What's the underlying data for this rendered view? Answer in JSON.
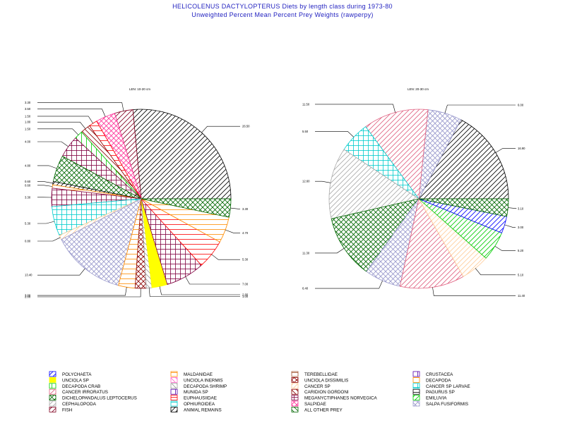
{
  "title": "HELICOLENUS DACTYLOPTERUS Diets by length class during 1973-80",
  "subtitle": "Unweighted Percent Mean Percent Prey  Weights (rawperpy)",
  "chart_data": [
    {
      "type": "pie",
      "label": "LEN: 10-20 cm",
      "slices": [
        {
          "category": "ANIMAL REMAINS",
          "value": 26.5
        },
        {
          "category": "FISH",
          "value": 3.3
        },
        {
          "category": "SALPIDAE",
          "value": 3.5
        },
        {
          "category": "EUPHAUSIIDAE",
          "value": 1.5
        },
        {
          "category": "CARIDION GORDONI",
          "value": 1.8
        },
        {
          "category": "DECAPODA CRAB",
          "value": 1.5
        },
        {
          "category": "MEGANYCTIPHANES NORVEGICA",
          "value": 4.0
        },
        {
          "category": "DICHELOPANDALUS LEPTOCERUS",
          "value": 4.8
        },
        {
          "category": "ANIMAL REMAINS",
          "value": 0.6
        },
        {
          "category": "MALDANIDAE",
          "value": 0.6
        },
        {
          "category": "MEGANYCTIPHANES NORVEGICA",
          "value": 3.3
        },
        {
          "category": "CANCER SP LARVAE",
          "value": 5.3
        },
        {
          "category": "CANCER SP",
          "value": 0.8
        },
        {
          "category": "SALPA FUSIFORMIS",
          "value": 13.4
        },
        {
          "category": "MALDANIDAE",
          "value": 3.0
        },
        {
          "category": "UNCIOLA DISSIMILIS",
          "value": 2.0
        },
        {
          "category": "DECAPODA SHRIMP",
          "value": 1.0
        },
        {
          "category": "UNCIOLA SP",
          "value": 2.8
        },
        {
          "category": "MEGANYCTIPHANES NORVEGICA",
          "value": 7.0
        },
        {
          "category": "EUPHAUSIIDAE",
          "value": 5.3
        },
        {
          "category": "MALDANIDAE",
          "value": 4.7
        },
        {
          "category": "DICHELOPANDALUS LEPTOCERUS",
          "value": 3.3
        }
      ]
    },
    {
      "type": "pie",
      "label": "LEN: 20-30 cm",
      "slices": [
        {
          "category": "ANIMAL REMAINS",
          "value": 16.9
        },
        {
          "category": "SALPA FUSIFORMIS",
          "value": 6.0
        },
        {
          "category": "CANCER IRRORATUS",
          "value": 11.5
        },
        {
          "category": "CANCER SP LARVAE",
          "value": 5.5
        },
        {
          "category": "CEPHALOPODA",
          "value": 12.6
        },
        {
          "category": "DICHELOPANDALUS LEPTOCERUS",
          "value": 11.3
        },
        {
          "category": "SALPA FUSIFORMIS",
          "value": 6.4
        },
        {
          "category": "CANCER IRRORATUS",
          "value": 11.4
        },
        {
          "category": "CANCER SP",
          "value": 5.1
        },
        {
          "category": "EMILUVIA",
          "value": 5.2
        },
        {
          "category": "POLYCHAETA",
          "value": 3.0
        },
        {
          "category": "DICHELOPANDALUS LEPTOCERUS",
          "value": 3.1
        }
      ]
    }
  ],
  "legend": [
    {
      "label": "POLYCHAETA",
      "color": "#0000ff",
      "pattern": "diag1"
    },
    {
      "label": "MALDANIDAE",
      "color": "#ff8c00",
      "pattern": "horiz"
    },
    {
      "label": "TEREBELLIDAE",
      "color": "#a0522d",
      "pattern": "horiz"
    },
    {
      "label": "CRUSTACEA",
      "color": "#5500aa",
      "pattern": "vert"
    },
    {
      "label": "UNCIOLA SP",
      "color": "#ffff00",
      "pattern": "solid"
    },
    {
      "label": "UNCIOLA INERMIS",
      "color": "#ff66cc",
      "pattern": "diag2"
    },
    {
      "label": "UNCIOLA DISSIMILIS",
      "color": "#8b0000",
      "pattern": "xdiag"
    },
    {
      "label": "DECAPODA",
      "color": "#ff8c00",
      "pattern": "horiz"
    },
    {
      "label": "DECAPODA CRAB",
      "color": "#00cc00",
      "pattern": "vert"
    },
    {
      "label": "DECAPODA SHRIMP",
      "color": "#999999",
      "pattern": "diag2"
    },
    {
      "label": "CANCER SP",
      "color": "#ffcc99",
      "pattern": "diag1"
    },
    {
      "label": "CANCER SP LARVAE",
      "color": "#00cccc",
      "pattern": "grid"
    },
    {
      "label": "CANCER IRRORATUS",
      "color": "#e06080",
      "pattern": "diag1"
    },
    {
      "label": "MUNIDA SP",
      "color": "#5500aa",
      "pattern": "vert"
    },
    {
      "label": "CARIDION GORDONI",
      "color": "#8b0000",
      "pattern": "diag2"
    },
    {
      "label": "PAGURUS SP",
      "color": "#000000",
      "pattern": "horiz"
    },
    {
      "label": "DICHELOPANDALUS LEPTOCERUS",
      "color": "#006600",
      "pattern": "xdiag"
    },
    {
      "label": "EUPHAUSIIDAE",
      "color": "#ff0000",
      "pattern": "horiz"
    },
    {
      "label": "MEGANYCTIPHANES NORVEGICA",
      "color": "#800040",
      "pattern": "grid"
    },
    {
      "label": "EMILUVIA",
      "color": "#00cc00",
      "pattern": "diag1"
    },
    {
      "label": "CEPHALOPODA",
      "color": "#aaaaaa",
      "pattern": "diag1"
    },
    {
      "label": "OPHIUROIDEA",
      "color": "#00cccc",
      "pattern": "horiz"
    },
    {
      "label": "SALPIDAE",
      "color": "#ff3399",
      "pattern": "xdiag"
    },
    {
      "label": "SALPA FUSIFORMIS",
      "color": "#9999cc",
      "pattern": "xdiag"
    },
    {
      "label": "FISH",
      "color": "#800020",
      "pattern": "diag1"
    },
    {
      "label": "ANIMAL REMAINS",
      "color": "#000000",
      "pattern": "diag1"
    },
    {
      "label": "ALL OTHER PREY",
      "color": "#006600",
      "pattern": "diag2"
    }
  ]
}
